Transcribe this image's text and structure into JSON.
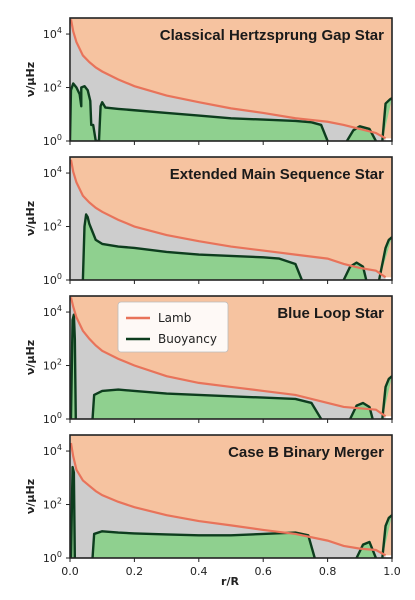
{
  "colors": {
    "lamb_line": "#e8735a",
    "lamb_fill": "#f6c3a0",
    "buoyancy_line": "#0d3d1e",
    "buoyancy_fill": "#8fd08f",
    "gap_fill": "#cdcdcd",
    "axes": "#222222"
  },
  "chart_data": {
    "type": "area",
    "shared": {
      "xlabel": "r/R",
      "ylabel": "ν/μHz",
      "xlim": [
        0.0,
        1.0
      ],
      "ylim_log10": [
        0,
        4.6
      ],
      "xticks": [
        0.0,
        0.2,
        0.4,
        0.6,
        0.8,
        1.0
      ],
      "xtick_labels": [
        "0.0",
        "0.2",
        "0.4",
        "0.6",
        "0.8",
        "1.0"
      ],
      "ytick_exponents": [
        0,
        2,
        4
      ],
      "ytick_base": "10",
      "legend": {
        "placement": "upper-left of third panel",
        "entries": [
          {
            "name": "Lamb",
            "color": "#e8735a"
          },
          {
            "name": "Buoyancy",
            "color": "#0d3d1e"
          }
        ]
      }
    },
    "panels": [
      {
        "title": "Classical Hertzsprung Gap Star",
        "series": [
          {
            "name": "Lamb",
            "points": [
              [
                0.003,
                4.55
              ],
              [
                0.01,
                4.1
              ],
              [
                0.02,
                3.7
              ],
              [
                0.04,
                3.2
              ],
              [
                0.06,
                2.95
              ],
              [
                0.08,
                2.75
              ],
              [
                0.1,
                2.6
              ],
              [
                0.15,
                2.3
              ],
              [
                0.2,
                2.05
              ],
              [
                0.3,
                1.7
              ],
              [
                0.4,
                1.45
              ],
              [
                0.5,
                1.22
              ],
              [
                0.6,
                1.05
              ],
              [
                0.7,
                0.85
              ],
              [
                0.8,
                0.72
              ],
              [
                0.85,
                0.6
              ],
              [
                0.9,
                0.45
              ],
              [
                0.95,
                0.3
              ],
              [
                0.98,
                0.1
              ]
            ]
          },
          {
            "name": "Buoyancy",
            "points": [
              [
                0.0,
                0
              ],
              [
                0.003,
                1.9
              ],
              [
                0.01,
                2.15
              ],
              [
                0.02,
                2.0
              ],
              [
                0.03,
                1.75
              ],
              [
                0.035,
                1.3
              ],
              [
                0.035,
                2.0
              ],
              [
                0.045,
                2.05
              ],
              [
                0.055,
                1.9
              ],
              [
                0.063,
                1.5
              ],
              [
                0.066,
                0.6
              ],
              [
                0.072,
                0.6
              ],
              [
                0.08,
                0
              ],
              [
                0.09,
                0
              ],
              [
                0.095,
                1.3
              ],
              [
                0.1,
                1.45
              ],
              [
                0.11,
                1.25
              ],
              [
                0.15,
                1.2
              ],
              [
                0.2,
                1.15
              ],
              [
                0.3,
                1.05
              ],
              [
                0.4,
                0.95
              ],
              [
                0.5,
                0.85
              ],
              [
                0.6,
                0.8
              ],
              [
                0.7,
                0.75
              ],
              [
                0.75,
                0.7
              ],
              [
                0.78,
                0.6
              ],
              [
                0.8,
                0
              ]
            ]
          },
          {
            "name": "Buoyancy-outer",
            "points": [
              [
                0.86,
                0
              ],
              [
                0.88,
                0.4
              ],
              [
                0.9,
                0.55
              ],
              [
                0.93,
                0.45
              ],
              [
                0.95,
                0
              ]
            ]
          },
          {
            "name": "Buoyancy-edge",
            "points": [
              [
                0.97,
                0
              ],
              [
                0.98,
                1.4
              ],
              [
                0.993,
                1.55
              ],
              [
                1.0,
                1.6
              ]
            ]
          }
        ]
      },
      {
        "title": "Extended Main Sequence Star",
        "series": [
          {
            "name": "Lamb",
            "points": [
              [
                0.003,
                4.5
              ],
              [
                0.01,
                4.05
              ],
              [
                0.02,
                3.65
              ],
              [
                0.04,
                3.15
              ],
              [
                0.06,
                2.9
              ],
              [
                0.08,
                2.7
              ],
              [
                0.1,
                2.55
              ],
              [
                0.15,
                2.25
              ],
              [
                0.2,
                2.0
              ],
              [
                0.3,
                1.68
              ],
              [
                0.4,
                1.45
              ],
              [
                0.5,
                1.25
              ],
              [
                0.6,
                1.1
              ],
              [
                0.7,
                0.95
              ],
              [
                0.8,
                0.8
              ],
              [
                0.85,
                0.6
              ],
              [
                0.9,
                0.45
              ],
              [
                0.95,
                0.35
              ],
              [
                0.98,
                0.1
              ]
            ]
          },
          {
            "name": "Buoyancy",
            "points": [
              [
                0.04,
                0
              ],
              [
                0.045,
                2.0
              ],
              [
                0.05,
                2.45
              ],
              [
                0.055,
                2.35
              ],
              [
                0.06,
                2.1
              ],
              [
                0.07,
                1.8
              ],
              [
                0.08,
                1.5
              ],
              [
                0.1,
                1.35
              ],
              [
                0.15,
                1.25
              ],
              [
                0.2,
                1.2
              ],
              [
                0.3,
                1.05
              ],
              [
                0.4,
                0.95
              ],
              [
                0.5,
                0.9
              ],
              [
                0.6,
                0.85
              ],
              [
                0.65,
                0.8
              ],
              [
                0.7,
                0.6
              ],
              [
                0.72,
                0
              ]
            ]
          },
          {
            "name": "Buoyancy-outer",
            "points": [
              [
                0.85,
                0
              ],
              [
                0.87,
                0.5
              ],
              [
                0.89,
                0.65
              ],
              [
                0.91,
                0.5
              ],
              [
                0.92,
                0
              ]
            ]
          },
          {
            "name": "Buoyancy-edge",
            "points": [
              [
                0.96,
                0
              ],
              [
                0.98,
                1.2
              ],
              [
                0.99,
                1.5
              ],
              [
                1.0,
                1.6
              ]
            ]
          }
        ]
      },
      {
        "title": "Blue Loop Star",
        "series": [
          {
            "name": "Lamb",
            "points": [
              [
                0.003,
                4.55
              ],
              [
                0.01,
                4.2
              ],
              [
                0.02,
                3.8
              ],
              [
                0.04,
                3.3
              ],
              [
                0.06,
                3.0
              ],
              [
                0.08,
                2.75
              ],
              [
                0.1,
                2.55
              ],
              [
                0.15,
                2.25
              ],
              [
                0.2,
                2.0
              ],
              [
                0.3,
                1.6
              ],
              [
                0.4,
                1.35
              ],
              [
                0.5,
                1.2
              ],
              [
                0.6,
                1.05
              ],
              [
                0.7,
                0.9
              ],
              [
                0.8,
                0.6
              ],
              [
                0.85,
                0.45
              ],
              [
                0.9,
                0.4
              ],
              [
                0.95,
                0.35
              ],
              [
                0.98,
                0.1
              ]
            ]
          },
          {
            "name": "Buoyancy",
            "points": [
              [
                0.003,
                0
              ],
              [
                0.008,
                3.7
              ],
              [
                0.012,
                3.9
              ],
              [
                0.015,
                3.0
              ],
              [
                0.018,
                0
              ]
            ]
          },
          {
            "name": "Buoyancy-envelope",
            "points": [
              [
                0.07,
                0
              ],
              [
                0.075,
                0.9
              ],
              [
                0.1,
                1.05
              ],
              [
                0.15,
                1.1
              ],
              [
                0.2,
                1.05
              ],
              [
                0.3,
                0.95
              ],
              [
                0.4,
                0.9
              ],
              [
                0.5,
                0.85
              ],
              [
                0.6,
                0.8
              ],
              [
                0.7,
                0.75
              ],
              [
                0.75,
                0.6
              ],
              [
                0.78,
                0
              ]
            ]
          },
          {
            "name": "Buoyancy-outer",
            "points": [
              [
                0.87,
                0
              ],
              [
                0.89,
                0.5
              ],
              [
                0.91,
                0.6
              ],
              [
                0.93,
                0.45
              ],
              [
                0.94,
                0
              ]
            ]
          },
          {
            "name": "Buoyancy-edge",
            "points": [
              [
                0.97,
                0
              ],
              [
                0.98,
                1.2
              ],
              [
                0.99,
                1.5
              ],
              [
                1.0,
                1.6
              ]
            ]
          }
        ]
      },
      {
        "title": "Case B Binary Merger",
        "series": [
          {
            "name": "Lamb",
            "points": [
              [
                0.003,
                4.3
              ],
              [
                0.01,
                3.8
              ],
              [
                0.02,
                3.3
              ],
              [
                0.04,
                2.9
              ],
              [
                0.06,
                2.7
              ],
              [
                0.08,
                2.5
              ],
              [
                0.1,
                2.35
              ],
              [
                0.15,
                2.1
              ],
              [
                0.2,
                1.9
              ],
              [
                0.3,
                1.6
              ],
              [
                0.4,
                1.38
              ],
              [
                0.5,
                1.22
              ],
              [
                0.6,
                1.05
              ],
              [
                0.7,
                0.9
              ],
              [
                0.8,
                0.65
              ],
              [
                0.85,
                0.45
              ],
              [
                0.9,
                0.35
              ],
              [
                0.95,
                0.3
              ],
              [
                0.98,
                0.1
              ]
            ]
          },
          {
            "name": "Buoyancy",
            "points": [
              [
                0.003,
                0
              ],
              [
                0.008,
                3.4
              ],
              [
                0.012,
                3.2
              ],
              [
                0.015,
                0
              ]
            ]
          },
          {
            "name": "Buoyancy-envelope",
            "points": [
              [
                0.07,
                0
              ],
              [
                0.075,
                0.9
              ],
              [
                0.1,
                1.0
              ],
              [
                0.15,
                0.95
              ],
              [
                0.2,
                0.92
              ],
              [
                0.3,
                0.88
              ],
              [
                0.4,
                0.85
              ],
              [
                0.5,
                0.85
              ],
              [
                0.6,
                0.9
              ],
              [
                0.7,
                0.95
              ],
              [
                0.74,
                0.85
              ],
              [
                0.76,
                0
              ]
            ]
          },
          {
            "name": "Buoyancy-outer",
            "points": [
              [
                0.89,
                0
              ],
              [
                0.91,
                0.5
              ],
              [
                0.93,
                0.6
              ],
              [
                0.94,
                0.3
              ],
              [
                0.95,
                0
              ]
            ]
          },
          {
            "name": "Buoyancy-edge",
            "points": [
              [
                0.97,
                0
              ],
              [
                0.98,
                1.2
              ],
              [
                0.99,
                1.5
              ],
              [
                1.0,
                1.6
              ]
            ]
          }
        ]
      }
    ]
  }
}
